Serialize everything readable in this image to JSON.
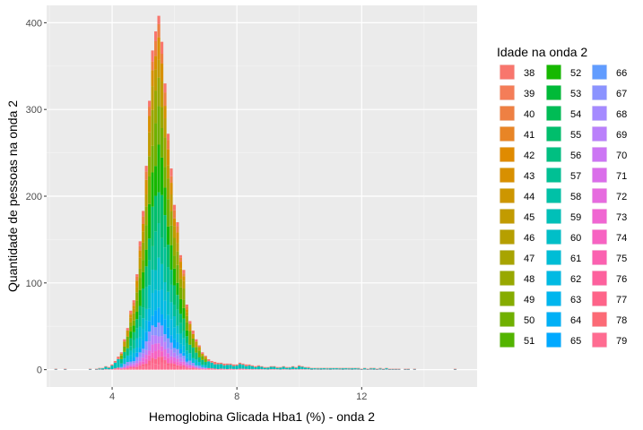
{
  "chart_data": {
    "type": "bar",
    "stacked": true,
    "xlabel": "Hemoglobina Glicada Hba1 (%) - onda 2",
    "ylabel": "Quantidade de pessoas na onda 2",
    "xlim": [
      1.9,
      15.7
    ],
    "ylim": [
      -20,
      420
    ],
    "x_ticks": [
      4,
      8,
      12
    ],
    "y_ticks": [
      0,
      100,
      200,
      300,
      400
    ],
    "x_tick_labels": [
      "4",
      "8",
      "12"
    ],
    "y_tick_labels": [
      "0",
      "100",
      "200",
      "300",
      "400"
    ],
    "grid": true,
    "legend": {
      "title": "Idade na onda 2",
      "placement": "right",
      "columns": 3,
      "entries": [
        {
          "label": "38",
          "color": "#F8766D"
        },
        {
          "label": "39",
          "color": "#F47D58"
        },
        {
          "label": "40",
          "color": "#EE8043"
        },
        {
          "label": "41",
          "color": "#E88526"
        },
        {
          "label": "42",
          "color": "#E08B00"
        },
        {
          "label": "43",
          "color": "#D89000"
        },
        {
          "label": "44",
          "color": "#CD9600"
        },
        {
          "label": "45",
          "color": "#C29B00"
        },
        {
          "label": "46",
          "color": "#B69F00"
        },
        {
          "label": "47",
          "color": "#A8A400"
        },
        {
          "label": "48",
          "color": "#98A800"
        },
        {
          "label": "49",
          "color": "#86AC00"
        },
        {
          "label": "50",
          "color": "#70B000"
        },
        {
          "label": "51",
          "color": "#53B400"
        },
        {
          "label": "52",
          "color": "#16B800"
        },
        {
          "label": "53",
          "color": "#00BA38"
        },
        {
          "label": "54",
          "color": "#00BC55"
        },
        {
          "label": "55",
          "color": "#00BE6C"
        },
        {
          "label": "56",
          "color": "#00BF81"
        },
        {
          "label": "57",
          "color": "#00C094"
        },
        {
          "label": "58",
          "color": "#00C1A7"
        },
        {
          "label": "59",
          "color": "#00C0B8"
        },
        {
          "label": "60",
          "color": "#00BFC8"
        },
        {
          "label": "61",
          "color": "#00BDD6"
        },
        {
          "label": "62",
          "color": "#00BAE3"
        },
        {
          "label": "63",
          "color": "#00B6EE"
        },
        {
          "label": "64",
          "color": "#00B0F6"
        },
        {
          "label": "65",
          "color": "#00A9FF"
        },
        {
          "label": "66",
          "color": "#619CFF"
        },
        {
          "label": "67",
          "color": "#8B93FF"
        },
        {
          "label": "68",
          "color": "#A58AFF"
        },
        {
          "label": "69",
          "color": "#BA80FB"
        },
        {
          "label": "70",
          "color": "#CC76F4"
        },
        {
          "label": "71",
          "color": "#DA6EEA"
        },
        {
          "label": "72",
          "color": "#E66BDF"
        },
        {
          "label": "73",
          "color": "#F066D2"
        },
        {
          "label": "74",
          "color": "#F763C2"
        },
        {
          "label": "75",
          "color": "#FB61B0"
        },
        {
          "label": "76",
          "color": "#FD619D"
        },
        {
          "label": "77",
          "color": "#FE6489"
        },
        {
          "label": "78",
          "color": "#FC6A76"
        },
        {
          "label": "79",
          "color": "#FF6C91"
        }
      ]
    },
    "bin_width": 0.1,
    "bins": [
      {
        "x": 2.2,
        "count": 1
      },
      {
        "x": 2.5,
        "count": 1
      },
      {
        "x": 3.3,
        "count": 1
      },
      {
        "x": 3.5,
        "count": 1
      },
      {
        "x": 3.6,
        "count": 2
      },
      {
        "x": 3.7,
        "count": 2
      },
      {
        "x": 3.8,
        "count": 4
      },
      {
        "x": 3.9,
        "count": 3
      },
      {
        "x": 4.0,
        "count": 6
      },
      {
        "x": 4.1,
        "count": 10
      },
      {
        "x": 4.2,
        "count": 15
      },
      {
        "x": 4.3,
        "count": 20
      },
      {
        "x": 4.4,
        "count": 35
      },
      {
        "x": 4.5,
        "count": 48
      },
      {
        "x": 4.6,
        "count": 68
      },
      {
        "x": 4.7,
        "count": 80
      },
      {
        "x": 4.8,
        "count": 110
      },
      {
        "x": 4.9,
        "count": 148
      },
      {
        "x": 5.0,
        "count": 183
      },
      {
        "x": 5.1,
        "count": 235
      },
      {
        "x": 5.2,
        "count": 310
      },
      {
        "x": 5.3,
        "count": 368
      },
      {
        "x": 5.4,
        "count": 390
      },
      {
        "x": 5.5,
        "count": 408
      },
      {
        "x": 5.6,
        "count": 378
      },
      {
        "x": 5.7,
        "count": 330
      },
      {
        "x": 5.8,
        "count": 272
      },
      {
        "x": 5.9,
        "count": 232
      },
      {
        "x": 6.0,
        "count": 190
      },
      {
        "x": 6.1,
        "count": 170
      },
      {
        "x": 6.2,
        "count": 132
      },
      {
        "x": 6.3,
        "count": 115
      },
      {
        "x": 6.4,
        "count": 75
      },
      {
        "x": 6.5,
        "count": 56
      },
      {
        "x": 6.6,
        "count": 45
      },
      {
        "x": 6.7,
        "count": 35
      },
      {
        "x": 6.8,
        "count": 28
      },
      {
        "x": 6.9,
        "count": 20
      },
      {
        "x": 7.0,
        "count": 16
      },
      {
        "x": 7.1,
        "count": 12
      },
      {
        "x": 7.2,
        "count": 10
      },
      {
        "x": 7.3,
        "count": 9
      },
      {
        "x": 7.4,
        "count": 8
      },
      {
        "x": 7.5,
        "count": 8
      },
      {
        "x": 7.6,
        "count": 7
      },
      {
        "x": 7.7,
        "count": 7
      },
      {
        "x": 7.8,
        "count": 7
      },
      {
        "x": 7.9,
        "count": 6
      },
      {
        "x": 8.0,
        "count": 6
      },
      {
        "x": 8.1,
        "count": 8
      },
      {
        "x": 8.2,
        "count": 7
      },
      {
        "x": 8.3,
        "count": 6
      },
      {
        "x": 8.4,
        "count": 6
      },
      {
        "x": 8.5,
        "count": 5
      },
      {
        "x": 8.6,
        "count": 4
      },
      {
        "x": 8.7,
        "count": 5
      },
      {
        "x": 8.8,
        "count": 4
      },
      {
        "x": 8.9,
        "count": 3
      },
      {
        "x": 9.0,
        "count": 3
      },
      {
        "x": 9.1,
        "count": 4
      },
      {
        "x": 9.2,
        "count": 4
      },
      {
        "x": 9.3,
        "count": 3
      },
      {
        "x": 9.4,
        "count": 3
      },
      {
        "x": 9.5,
        "count": 4
      },
      {
        "x": 9.6,
        "count": 3
      },
      {
        "x": 9.7,
        "count": 3
      },
      {
        "x": 9.8,
        "count": 4
      },
      {
        "x": 9.9,
        "count": 3
      },
      {
        "x": 10.0,
        "count": 5
      },
      {
        "x": 10.1,
        "count": 4
      },
      {
        "x": 10.2,
        "count": 3
      },
      {
        "x": 10.3,
        "count": 3
      },
      {
        "x": 10.4,
        "count": 2
      },
      {
        "x": 10.5,
        "count": 2
      },
      {
        "x": 10.6,
        "count": 2
      },
      {
        "x": 10.7,
        "count": 2
      },
      {
        "x": 10.8,
        "count": 2
      },
      {
        "x": 10.9,
        "count": 2
      },
      {
        "x": 11.0,
        "count": 2
      },
      {
        "x": 11.1,
        "count": 2
      },
      {
        "x": 11.2,
        "count": 2
      },
      {
        "x": 11.3,
        "count": 2
      },
      {
        "x": 11.4,
        "count": 2
      },
      {
        "x": 11.5,
        "count": 2
      },
      {
        "x": 11.6,
        "count": 2
      },
      {
        "x": 11.7,
        "count": 2
      },
      {
        "x": 11.8,
        "count": 2
      },
      {
        "x": 11.9,
        "count": 2
      },
      {
        "x": 12.0,
        "count": 1
      },
      {
        "x": 12.1,
        "count": 2
      },
      {
        "x": 12.2,
        "count": 1
      },
      {
        "x": 12.3,
        "count": 2
      },
      {
        "x": 12.4,
        "count": 2
      },
      {
        "x": 12.5,
        "count": 1
      },
      {
        "x": 12.6,
        "count": 2
      },
      {
        "x": 12.7,
        "count": 1
      },
      {
        "x": 12.8,
        "count": 2
      },
      {
        "x": 12.9,
        "count": 1
      },
      {
        "x": 13.0,
        "count": 1
      },
      {
        "x": 13.1,
        "count": 1
      },
      {
        "x": 13.2,
        "count": 1
      },
      {
        "x": 13.4,
        "count": 1
      },
      {
        "x": 13.5,
        "count": 1
      },
      {
        "x": 13.7,
        "count": 1
      },
      {
        "x": 15.0,
        "count": 1
      }
    ]
  }
}
